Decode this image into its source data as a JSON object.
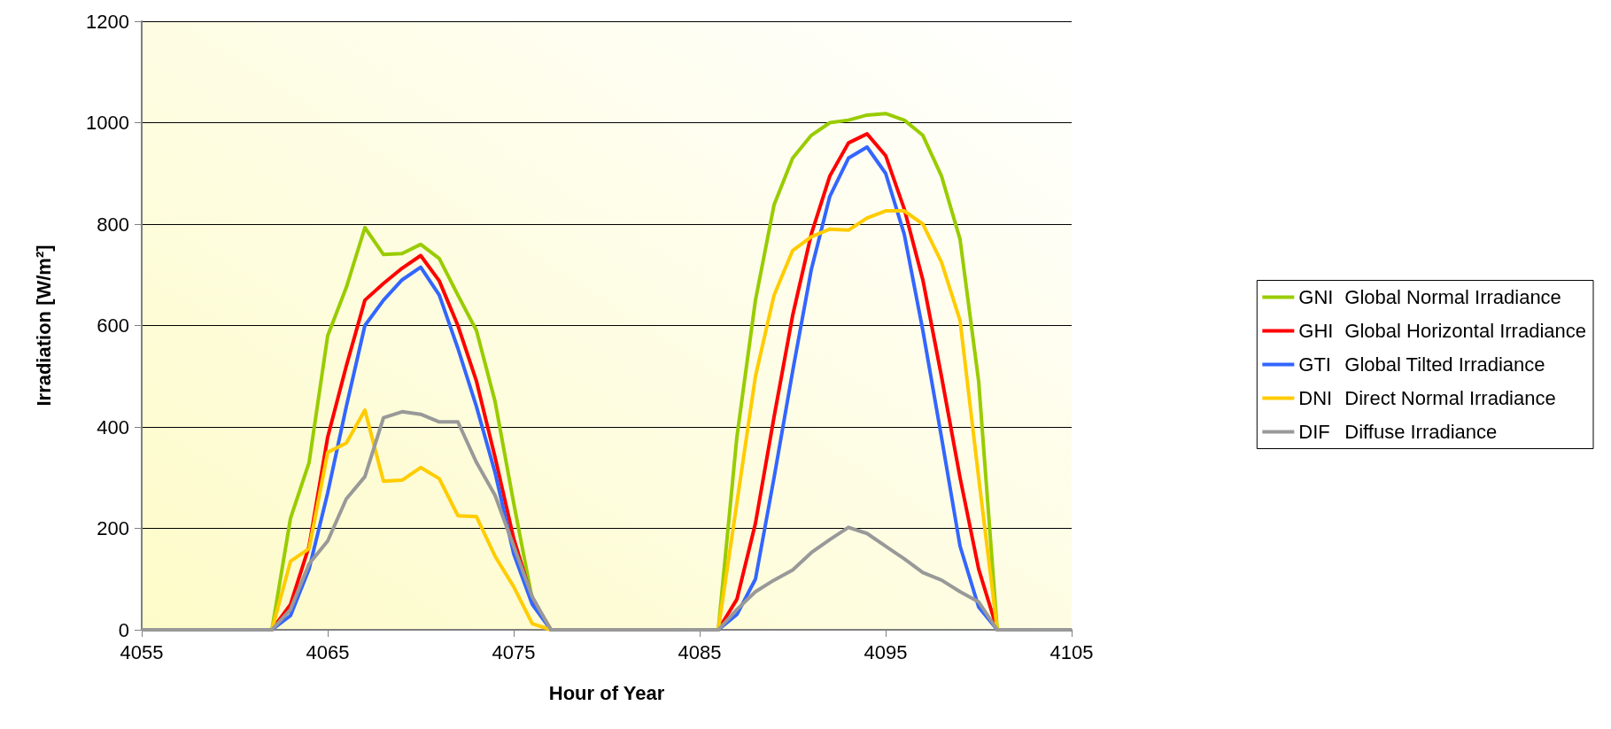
{
  "chart_data": {
    "type": "line",
    "xlabel": "Hour of Year",
    "ylabel": "Irradiation [W/m²]",
    "x": [
      4055,
      4056,
      4057,
      4058,
      4059,
      4060,
      4061,
      4062,
      4063,
      4064,
      4065,
      4066,
      4067,
      4068,
      4069,
      4070,
      4071,
      4072,
      4073,
      4074,
      4075,
      4076,
      4077,
      4078,
      4079,
      4080,
      4081,
      4082,
      4083,
      4084,
      4085,
      4086,
      4087,
      4088,
      4089,
      4090,
      4091,
      4092,
      4093,
      4094,
      4095,
      4096,
      4097,
      4098,
      4099,
      4100,
      4101,
      4102,
      4103,
      4104,
      4105
    ],
    "series": [
      {
        "name": "GNI Global Normal Irradiance",
        "color": "#99cc00",
        "values": [
          null,
          null,
          null,
          null,
          null,
          null,
          0,
          0,
          220,
          330,
          580,
          675,
          793,
          740,
          742,
          760,
          732,
          660,
          590,
          450,
          250,
          60,
          0,
          0,
          0,
          0,
          0,
          0,
          0,
          0,
          0,
          0,
          380,
          650,
          838,
          930,
          975,
          1000,
          1005,
          1015,
          1018,
          1005,
          975,
          895,
          770,
          490,
          0,
          0,
          null,
          null,
          null
        ]
      },
      {
        "name": "GHI Global Horizontal Irradiance",
        "color": "#ff0000",
        "values": [
          null,
          null,
          null,
          null,
          null,
          null,
          0,
          0,
          50,
          165,
          380,
          520,
          650,
          683,
          713,
          738,
          688,
          600,
          490,
          340,
          180,
          60,
          0,
          0,
          0,
          0,
          0,
          0,
          0,
          0,
          0,
          0,
          60,
          210,
          420,
          620,
          780,
          895,
          960,
          978,
          935,
          830,
          690,
          500,
          300,
          120,
          0,
          0,
          null,
          null,
          null
        ]
      },
      {
        "name": "GTI Global Tilted Irradiance",
        "color": "#3366ff",
        "values": [
          null,
          null,
          null,
          null,
          null,
          null,
          0,
          0,
          28,
          120,
          270,
          440,
          600,
          650,
          690,
          715,
          660,
          555,
          440,
          310,
          150,
          50,
          0,
          0,
          0,
          0,
          0,
          0,
          0,
          0,
          0,
          0,
          30,
          100,
          300,
          510,
          710,
          855,
          930,
          952,
          900,
          780,
          590,
          380,
          165,
          45,
          0,
          0,
          null,
          null,
          null
        ]
      },
      {
        "name": "DNI Direct Normal Irradiance",
        "color": "#ffcc00",
        "values": [
          null,
          null,
          null,
          null,
          null,
          null,
          0,
          0,
          135,
          160,
          350,
          368,
          433,
          293,
          295,
          320,
          298,
          225,
          223,
          145,
          85,
          12,
          0,
          0,
          0,
          0,
          0,
          0,
          0,
          0,
          0,
          0,
          250,
          500,
          660,
          748,
          775,
          790,
          788,
          812,
          826,
          826,
          800,
          725,
          610,
          300,
          0,
          0,
          null,
          null,
          null
        ]
      },
      {
        "name": "DIF Diffuse Irradiance",
        "color": "#999999",
        "values": [
          0,
          0,
          0,
          0,
          0,
          0,
          0,
          0,
          40,
          130,
          175,
          258,
          302,
          418,
          430,
          425,
          410,
          410,
          330,
          265,
          165,
          65,
          0,
          0,
          0,
          0,
          0,
          0,
          0,
          0,
          0,
          0,
          40,
          75,
          98,
          118,
          152,
          178,
          202,
          190,
          165,
          140,
          113,
          98,
          75,
          55,
          0,
          0,
          0,
          0,
          0
        ]
      }
    ],
    "xlim": [
      4055,
      4105
    ],
    "xticks": [
      4055,
      4065,
      4075,
      4085,
      4095,
      4105
    ],
    "ylim": [
      0,
      1200
    ],
    "yticks": [
      0,
      200,
      400,
      600,
      800,
      1000,
      1200
    ],
    "grid": "y",
    "legend": "right",
    "marker": "none",
    "line_style": "solid"
  }
}
